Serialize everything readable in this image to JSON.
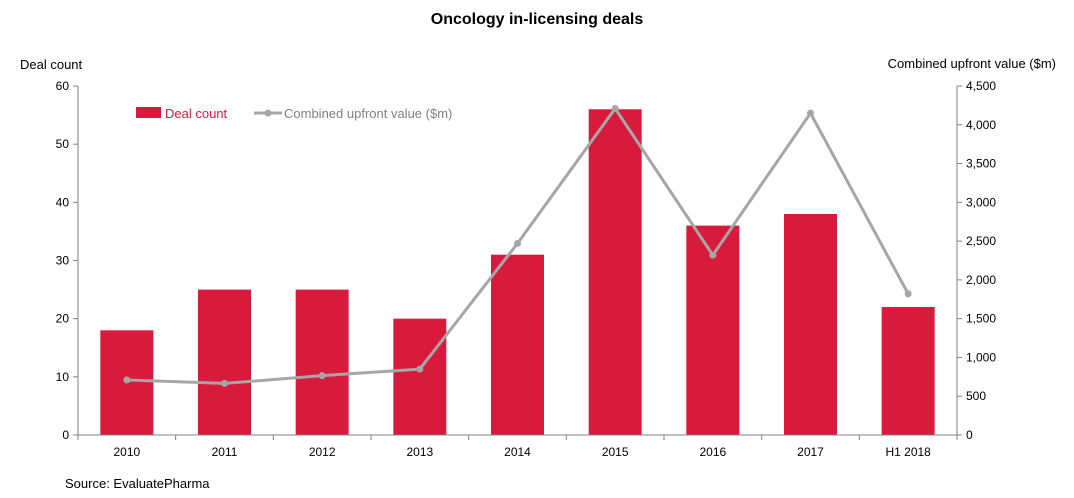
{
  "chart_data": {
    "type": "bar",
    "title": "Oncology in-licensing deals",
    "categories": [
      "2010",
      "2011",
      "2012",
      "2013",
      "2014",
      "2015",
      "2016",
      "2017",
      "H1 2018"
    ],
    "series": [
      {
        "name": "Deal count",
        "kind": "bar",
        "axis": "left",
        "color": "#D81B3C",
        "values": [
          18,
          25,
          25,
          20,
          31,
          56,
          36,
          38,
          22
        ]
      },
      {
        "name": "Combined upfront value ($m)",
        "kind": "line",
        "axis": "right",
        "color": "#A6A6A6",
        "values": [
          710,
          665,
          765,
          850,
          2470,
          4210,
          2320,
          4150,
          1820
        ]
      }
    ],
    "ylabel_left": "Deal count",
    "ylabel_right": "Combined upfront value ($m)",
    "ylim_left": [
      0,
      60
    ],
    "yticks_left": [
      "0",
      "10",
      "20",
      "30",
      "40",
      "50",
      "60"
    ],
    "ylim_right": [
      0,
      4500
    ],
    "yticks_right": [
      "0",
      "500",
      "1,000",
      "1,500",
      "2,000",
      "2,500",
      "3,000",
      "3,500",
      "4,000",
      "4,500"
    ],
    "grid": false,
    "legend_position": "top-left",
    "source": "Source: EvaluatePharma"
  }
}
